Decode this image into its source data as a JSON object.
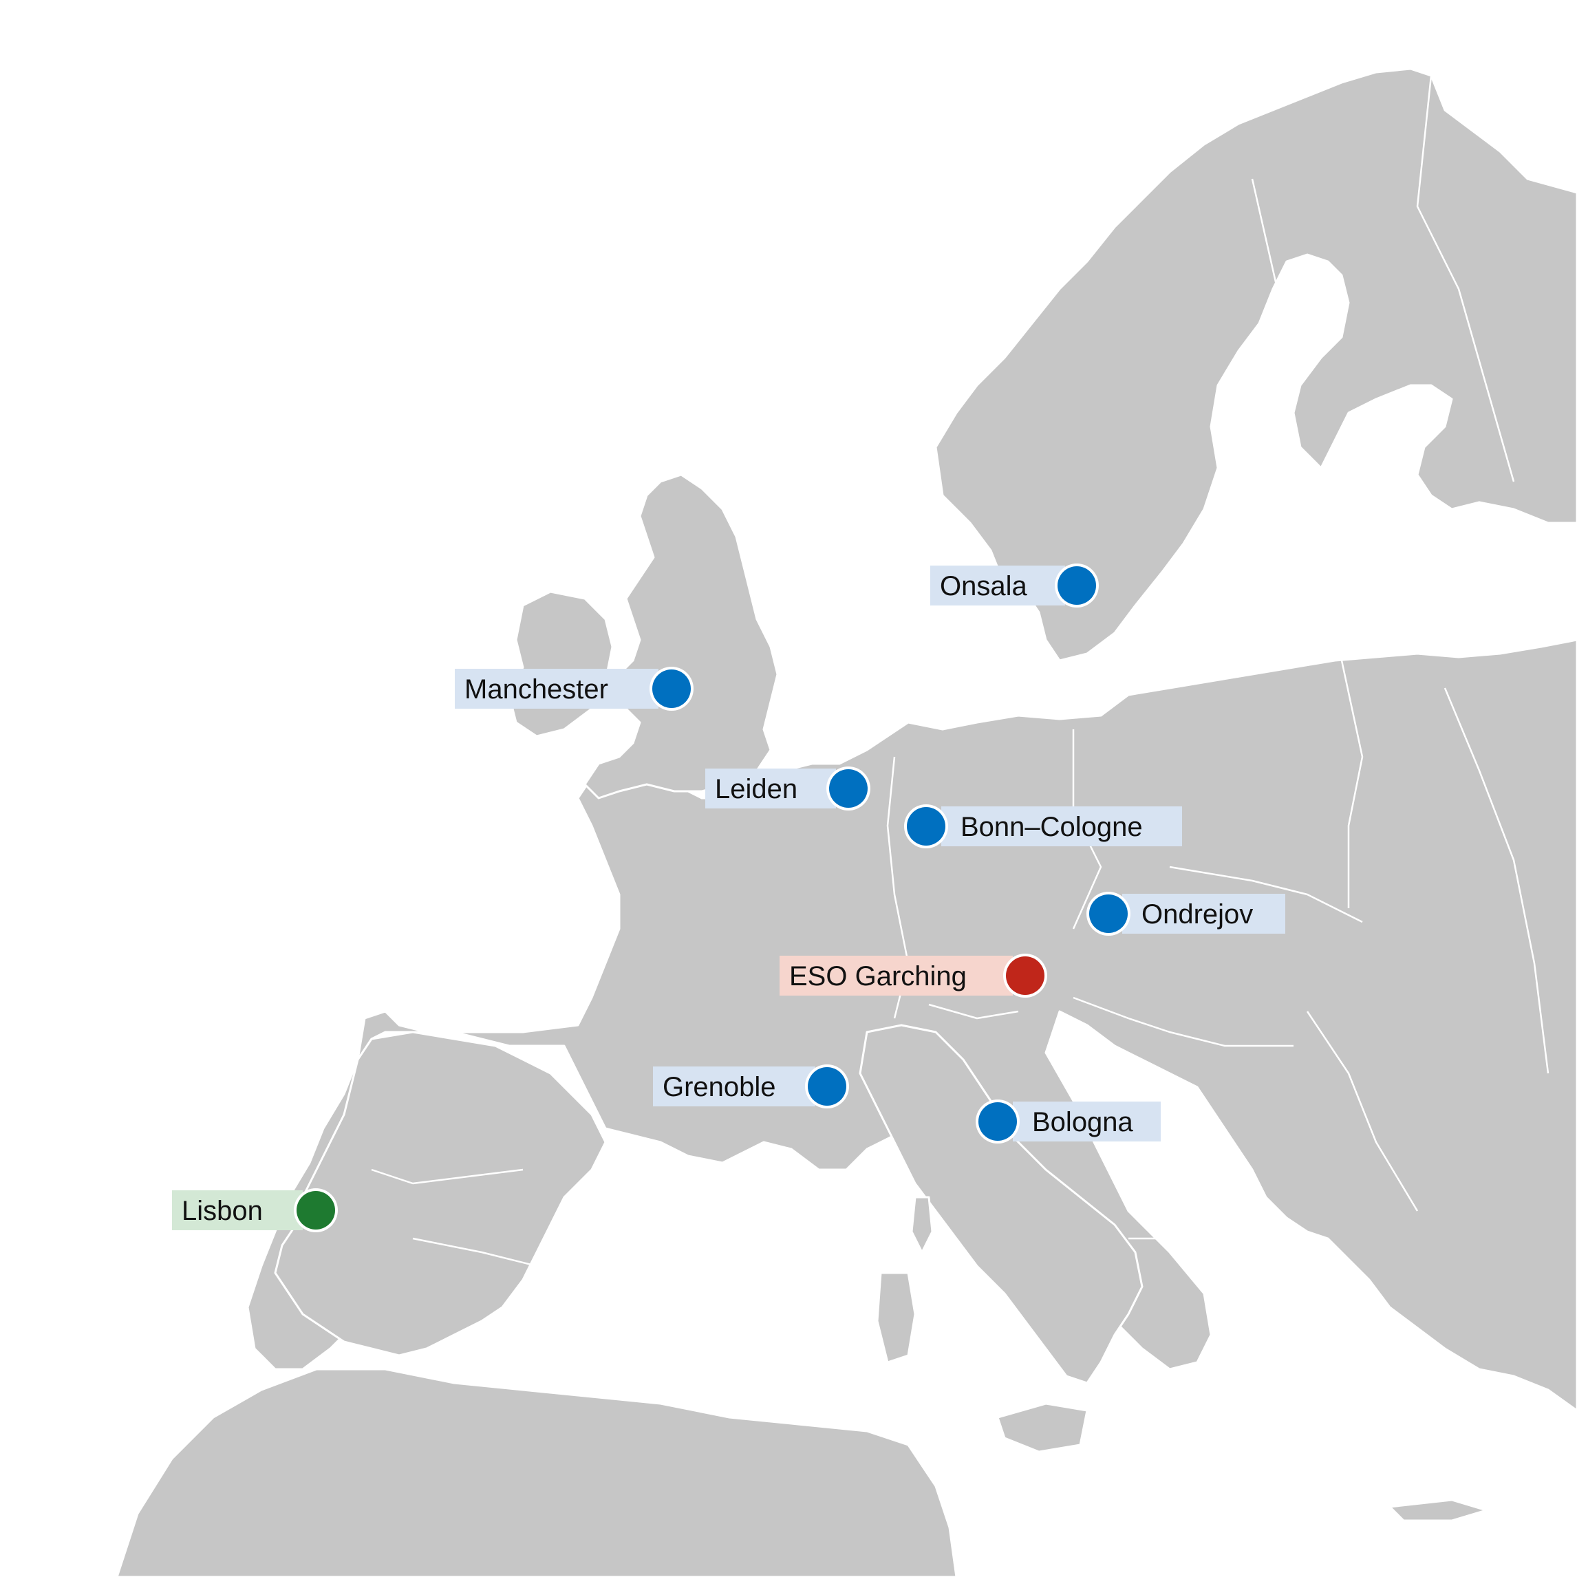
{
  "map": {
    "colors": {
      "land": "#c6c6c6",
      "water": "#ffffff",
      "border": "#ffffff",
      "node": "#0070c0",
      "node_label_bg": "#d7e3f2",
      "hq": "#c0261a",
      "hq_label_bg": "#f6d5cd",
      "special": "#1e7a30",
      "special_label_bg": "#d3e8d5"
    },
    "markers": [
      {
        "id": "onsala",
        "label": "Onsala",
        "kind": "node"
      },
      {
        "id": "manchester",
        "label": "Manchester",
        "kind": "node"
      },
      {
        "id": "leiden",
        "label": "Leiden",
        "kind": "node"
      },
      {
        "id": "bonn-cologne",
        "label": "Bonn–Cologne",
        "kind": "node"
      },
      {
        "id": "ondrejov",
        "label": "Ondrejov",
        "kind": "node"
      },
      {
        "id": "eso-garching",
        "label": "ESO Garching",
        "kind": "hq"
      },
      {
        "id": "grenoble",
        "label": "Grenoble",
        "kind": "node"
      },
      {
        "id": "bologna",
        "label": "Bologna",
        "kind": "node"
      },
      {
        "id": "lisbon",
        "label": "Lisbon",
        "kind": "special"
      }
    ]
  }
}
